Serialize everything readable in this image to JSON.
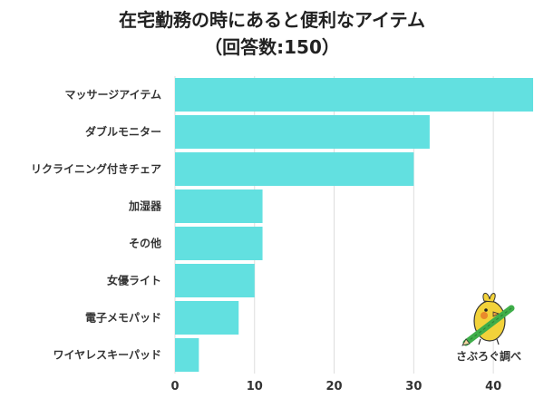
{
  "chart_data": {
    "type": "bar",
    "orientation": "horizontal",
    "title": "在宅勤務の時にあると便利なアイテム",
    "subtitle": "（回答数:150）",
    "categories": [
      "マッサージアイテム",
      "ダブルモニター",
      "リクライニング付きチェア",
      "加湿器",
      "その他",
      "女優ライト",
      "電子メモパッド",
      "ワイヤレスキーパッド"
    ],
    "values": [
      45,
      32,
      30,
      11,
      11,
      10,
      8,
      3
    ],
    "xlim": [
      0,
      45
    ],
    "xticks": [
      0,
      10,
      20,
      30,
      40
    ],
    "grid": true,
    "bar_color": "#62e0e0",
    "grid_color": "#dddddd"
  },
  "credit": "さぶろぐ調べ",
  "colors": {
    "mascot_body": "#f2d23a",
    "mascot_cheek": "#e98a2b",
    "pencil": "#3fae4a"
  }
}
